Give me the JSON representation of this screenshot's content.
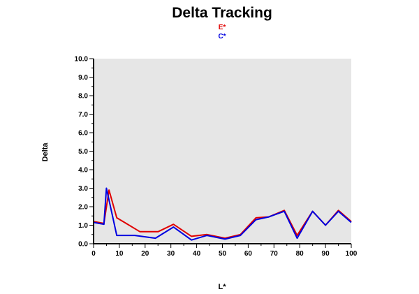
{
  "chart_data": {
    "type": "line",
    "title": "Delta Tracking",
    "xlabel": "L*",
    "ylabel": "Delta",
    "xlim": [
      0,
      100
    ],
    "ylim": [
      0,
      10
    ],
    "x_ticks": [
      "0",
      "10",
      "20",
      "30",
      "40",
      "50",
      "60",
      "70",
      "80",
      "90",
      "100"
    ],
    "y_ticks": [
      "0.0",
      "1.0",
      "2.0",
      "3.0",
      "4.0",
      "5.0",
      "6.0",
      "7.0",
      "8.0",
      "9.0",
      "10.0"
    ],
    "grid": false,
    "plot_background": "#e6e6e6",
    "legend_position": "top-center",
    "series": [
      {
        "name": "E*",
        "color": "#e00000",
        "points": [
          [
            0,
            1.2
          ],
          [
            4,
            1.1
          ],
          [
            6,
            2.9
          ],
          [
            9,
            1.4
          ],
          [
            12,
            1.15
          ],
          [
            18,
            0.65
          ],
          [
            25,
            0.65
          ],
          [
            31,
            1.05
          ],
          [
            38,
            0.4
          ],
          [
            44,
            0.5
          ],
          [
            51,
            0.3
          ],
          [
            57,
            0.5
          ],
          [
            63,
            1.4
          ],
          [
            68,
            1.45
          ],
          [
            74,
            1.8
          ],
          [
            79,
            0.45
          ],
          [
            85,
            1.75
          ],
          [
            90,
            1.0
          ],
          [
            95,
            1.8
          ],
          [
            100,
            1.2
          ]
        ]
      },
      {
        "name": "C*",
        "color": "#0000e0",
        "points": [
          [
            0,
            1.15
          ],
          [
            4,
            1.05
          ],
          [
            5,
            3.0
          ],
          [
            9,
            0.45
          ],
          [
            16,
            0.45
          ],
          [
            24,
            0.3
          ],
          [
            31,
            0.9
          ],
          [
            38,
            0.2
          ],
          [
            44,
            0.45
          ],
          [
            51,
            0.25
          ],
          [
            57,
            0.45
          ],
          [
            63,
            1.3
          ],
          [
            68,
            1.45
          ],
          [
            74,
            1.75
          ],
          [
            79,
            0.3
          ],
          [
            85,
            1.75
          ],
          [
            90,
            1.0
          ],
          [
            95,
            1.75
          ],
          [
            100,
            1.15
          ]
        ]
      }
    ]
  }
}
